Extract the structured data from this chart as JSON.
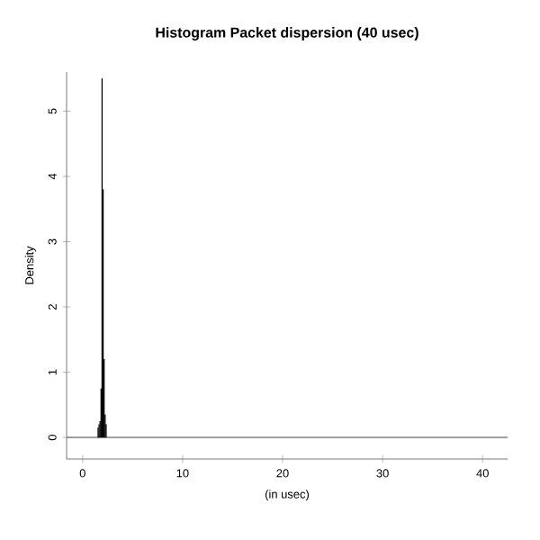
{
  "chart_data": {
    "type": "histogram",
    "title": "Histogram Packet dispersion (40 usec)",
    "xlabel": "(in usec)",
    "ylabel": "Density",
    "color": "#000000",
    "bins": [
      1.5,
      1.6,
      1.7,
      1.8,
      1.9,
      2.0,
      2.1,
      2.2,
      2.3,
      2.4
    ],
    "values": [
      0.15,
      0.2,
      0.25,
      0.75,
      5.5,
      3.8,
      1.2,
      0.35,
      0.2
    ],
    "ref_lines": [
      {
        "axis": "y",
        "value": 0,
        "color": "#808080"
      }
    ],
    "xlim": [
      -1.6,
      42.5
    ],
    "ylim": [
      -0.33,
      5.6
    ],
    "xticks": [
      0,
      10,
      20,
      30,
      40
    ],
    "yticks": [
      0,
      1,
      2,
      3,
      4,
      5
    ],
    "grid": false
  }
}
